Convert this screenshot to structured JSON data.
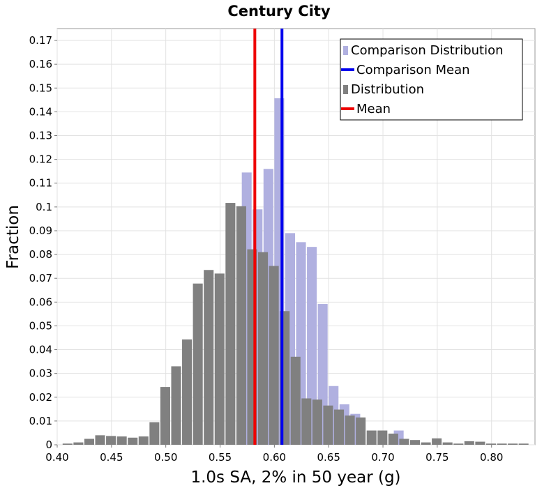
{
  "chart_data": {
    "type": "bar",
    "title": "Century City",
    "xlabel": "1.0s SA, 2% in 50 year (g)",
    "ylabel": "Fraction",
    "xlim": [
      0.4,
      0.84
    ],
    "ylim": [
      0,
      0.175
    ],
    "x_ticks": [
      "0.40",
      "0.45",
      "0.50",
      "0.55",
      "0.60",
      "0.65",
      "0.70",
      "0.75",
      "0.80"
    ],
    "y_ticks": [
      "0",
      "0.01",
      "0.02",
      "0.03",
      "0.04",
      "0.05",
      "0.06",
      "0.07",
      "0.08",
      "0.09",
      "0.1",
      "0.11",
      "0.12",
      "0.13",
      "0.14",
      "0.15",
      "0.16",
      "0.17"
    ],
    "grid": true,
    "legend_position": "top-right",
    "bin_width": 0.01,
    "series": [
      {
        "name": "Comparison Distribution",
        "kind": "histogram",
        "color": "#b0b0e0",
        "x": [
          0.575,
          0.585,
          0.595,
          0.605,
          0.615,
          0.625,
          0.635,
          0.645,
          0.655,
          0.665,
          0.675,
          0.715
        ],
        "values": [
          0.1145,
          0.099,
          0.116,
          0.1457,
          0.089,
          0.0852,
          0.0832,
          0.0592,
          0.0247,
          0.017,
          0.013,
          0.006
        ]
      },
      {
        "name": "Comparison Mean",
        "kind": "vline",
        "color": "#0000ee",
        "value": 0.607
      },
      {
        "name": "Distribution",
        "kind": "histogram",
        "color": "#808080",
        "x": [
          0.41,
          0.42,
          0.43,
          0.44,
          0.45,
          0.46,
          0.47,
          0.48,
          0.49,
          0.5,
          0.51,
          0.52,
          0.53,
          0.54,
          0.55,
          0.56,
          0.57,
          0.58,
          0.59,
          0.6,
          0.61,
          0.62,
          0.63,
          0.64,
          0.65,
          0.66,
          0.67,
          0.68,
          0.69,
          0.7,
          0.71,
          0.72,
          0.73,
          0.74,
          0.75,
          0.76,
          0.77,
          0.78,
          0.79,
          0.8,
          0.81,
          0.82,
          0.83
        ],
        "values": [
          0.0005,
          0.001,
          0.0025,
          0.004,
          0.0037,
          0.0035,
          0.003,
          0.0035,
          0.0095,
          0.0243,
          0.033,
          0.0443,
          0.0678,
          0.0735,
          0.072,
          0.1017,
          0.1003,
          0.0822,
          0.081,
          0.0752,
          0.0562,
          0.037,
          0.0195,
          0.019,
          0.0165,
          0.0148,
          0.0123,
          0.0115,
          0.006,
          0.006,
          0.0047,
          0.0025,
          0.002,
          0.001,
          0.0027,
          0.001,
          0.0005,
          0.0015,
          0.0013,
          0.0005,
          0.0005,
          0.0005,
          0.0005
        ]
      },
      {
        "name": "Mean",
        "kind": "vline",
        "color": "#ee0000",
        "value": 0.582
      }
    ]
  }
}
